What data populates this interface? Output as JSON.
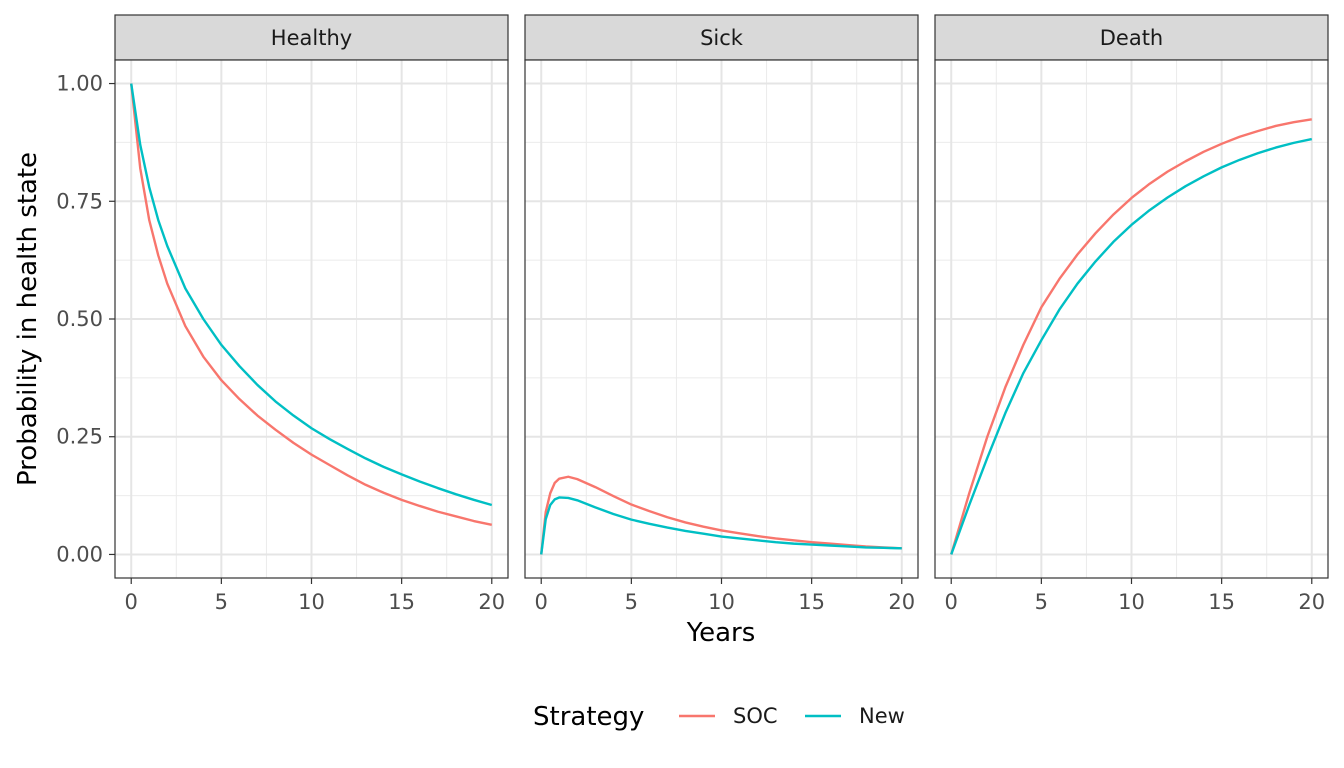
{
  "chart_data": {
    "type": "line",
    "title": "",
    "xlabel": "Years",
    "ylabel": "Probability in health state",
    "xlim": [
      0,
      20
    ],
    "ylim": [
      0,
      1
    ],
    "x_ticks": [
      0,
      5,
      10,
      15,
      20
    ],
    "x_tick_labels": [
      "0",
      "5",
      "10",
      "15",
      "20"
    ],
    "y_ticks": [
      0,
      0.25,
      0.5,
      0.75,
      1
    ],
    "y_tick_labels": [
      "0.00",
      "0.25",
      "0.50",
      "0.75",
      "1.00"
    ],
    "grid": true,
    "legend": {
      "title": "Strategy",
      "position": "bottom",
      "entries": [
        {
          "name": "SOC",
          "color": "#F8766D"
        },
        {
          "name": "New",
          "color": "#00BFC4"
        }
      ]
    },
    "panels": [
      {
        "title": "Healthy",
        "series": [
          {
            "name": "SOC",
            "color": "#F8766D",
            "x": [
              0,
              0.5,
              1,
              1.5,
              2,
              3,
              4,
              5,
              6,
              7,
              8,
              9,
              10,
              11,
              12,
              13,
              14,
              15,
              16,
              17,
              18,
              19,
              20
            ],
            "y": [
              1.0,
              0.82,
              0.71,
              0.635,
              0.575,
              0.485,
              0.42,
              0.37,
              0.33,
              0.295,
              0.265,
              0.237,
              0.212,
              0.19,
              0.168,
              0.148,
              0.131,
              0.116,
              0.103,
              0.091,
              0.081,
              0.071,
              0.063
            ]
          },
          {
            "name": "New",
            "color": "#00BFC4",
            "x": [
              0,
              0.5,
              1,
              1.5,
              2,
              3,
              4,
              5,
              6,
              7,
              8,
              9,
              10,
              11,
              12,
              13,
              14,
              15,
              16,
              17,
              18,
              19,
              20
            ],
            "y": [
              1.0,
              0.87,
              0.78,
              0.71,
              0.655,
              0.565,
              0.5,
              0.445,
              0.4,
              0.36,
              0.325,
              0.295,
              0.268,
              0.245,
              0.224,
              0.204,
              0.186,
              0.17,
              0.155,
              0.141,
              0.128,
              0.116,
              0.105
            ]
          }
        ]
      },
      {
        "title": "Sick",
        "series": [
          {
            "name": "SOC",
            "color": "#F8766D",
            "x": [
              0,
              0.25,
              0.5,
              0.75,
              1,
              1.5,
              2,
              3,
              4,
              5,
              6,
              7,
              8,
              9,
              10,
              11,
              12,
              13,
              14,
              15,
              16,
              17,
              18,
              19,
              20
            ],
            "y": [
              0.0,
              0.09,
              0.13,
              0.152,
              0.161,
              0.165,
              0.16,
              0.143,
              0.124,
              0.106,
              0.092,
              0.079,
              0.068,
              0.059,
              0.051,
              0.045,
              0.039,
              0.034,
              0.03,
              0.026,
              0.023,
              0.02,
              0.017,
              0.015,
              0.013
            ]
          },
          {
            "name": "New",
            "color": "#00BFC4",
            "x": [
              0,
              0.25,
              0.5,
              0.75,
              1,
              1.5,
              2,
              3,
              4,
              5,
              6,
              7,
              8,
              9,
              10,
              11,
              12,
              13,
              14,
              15,
              16,
              17,
              18,
              19,
              20
            ],
            "y": [
              0.0,
              0.075,
              0.105,
              0.117,
              0.121,
              0.12,
              0.115,
              0.1,
              0.086,
              0.074,
              0.065,
              0.057,
              0.05,
              0.044,
              0.038,
              0.034,
              0.03,
              0.026,
              0.023,
              0.021,
              0.019,
              0.017,
              0.015,
              0.014,
              0.013
            ]
          }
        ]
      },
      {
        "title": "Death",
        "series": [
          {
            "name": "SOC",
            "color": "#F8766D",
            "x": [
              0,
              1,
              2,
              3,
              4,
              5,
              6,
              7,
              8,
              9,
              10,
              11,
              12,
              13,
              14,
              15,
              16,
              17,
              18,
              19,
              20
            ],
            "y": [
              0.0,
              0.13,
              0.25,
              0.355,
              0.445,
              0.525,
              0.585,
              0.637,
              0.682,
              0.722,
              0.757,
              0.787,
              0.813,
              0.835,
              0.855,
              0.872,
              0.887,
              0.899,
              0.91,
              0.918,
              0.924
            ]
          },
          {
            "name": "New",
            "color": "#00BFC4",
            "x": [
              0,
              1,
              2,
              3,
              4,
              5,
              6,
              7,
              8,
              9,
              10,
              11,
              12,
              13,
              14,
              15,
              16,
              17,
              18,
              19,
              20
            ],
            "y": [
              0.0,
              0.105,
              0.205,
              0.3,
              0.385,
              0.455,
              0.52,
              0.575,
              0.622,
              0.664,
              0.7,
              0.731,
              0.758,
              0.782,
              0.803,
              0.822,
              0.838,
              0.852,
              0.864,
              0.874,
              0.882
            ]
          }
        ]
      }
    ]
  }
}
